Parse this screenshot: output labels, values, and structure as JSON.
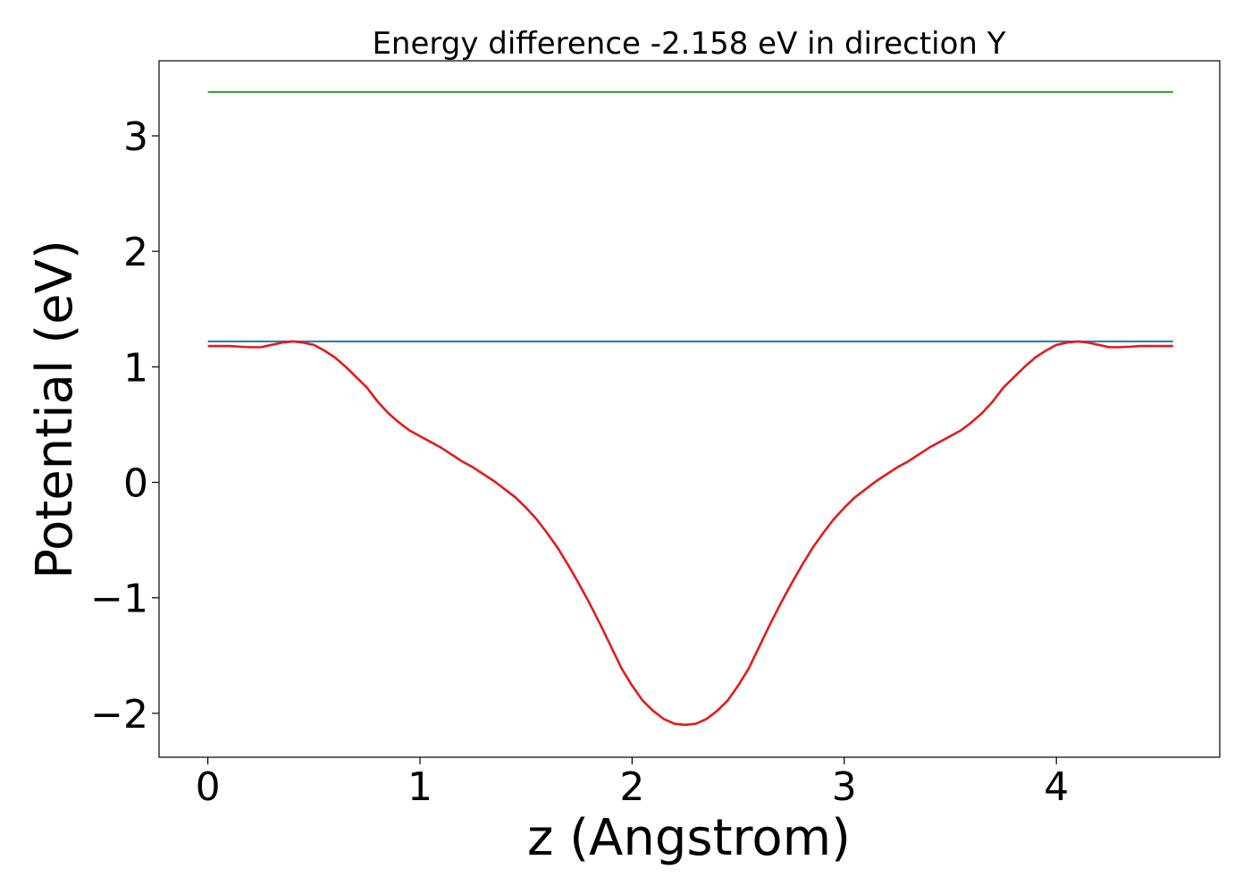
{
  "chart_data": {
    "type": "line",
    "title": "Energy difference -2.158 eV in direction Y",
    "xlabel": "z (Angstrom)",
    "ylabel": "Potential (eV)",
    "xlim": [
      -0.23,
      4.77
    ],
    "ylim": [
      -2.38,
      3.65
    ],
    "xticks": [
      0,
      1,
      2,
      3,
      4
    ],
    "xtick_labels": [
      "0",
      "1",
      "2",
      "3",
      "4"
    ],
    "yticks": [
      -2,
      -1,
      0,
      1,
      2,
      3
    ],
    "ytick_labels": [
      "−2",
      "−1",
      "0",
      "1",
      "2",
      "3"
    ],
    "grid": false,
    "colors": {
      "potential": "#e41a1c",
      "blue_level": "#1f77b4",
      "green_level": "#2ca02c"
    },
    "series": [
      {
        "name": "potential",
        "x": [
          0.0,
          0.05,
          0.1,
          0.15,
          0.2,
          0.25,
          0.3,
          0.35,
          0.4,
          0.45,
          0.5,
          0.55,
          0.6,
          0.65,
          0.7,
          0.75,
          0.8,
          0.85,
          0.9,
          0.95,
          1.0,
          1.05,
          1.1,
          1.15,
          1.2,
          1.25,
          1.3,
          1.35,
          1.4,
          1.45,
          1.5,
          1.55,
          1.6,
          1.65,
          1.7,
          1.75,
          1.8,
          1.85,
          1.9,
          1.95,
          2.0,
          2.05,
          2.1,
          2.15,
          2.2,
          2.25,
          2.3,
          2.35,
          2.4,
          2.45,
          2.5,
          2.55,
          2.6,
          2.65,
          2.7,
          2.75,
          2.8,
          2.85,
          2.9,
          2.95,
          3.0,
          3.05,
          3.1,
          3.15,
          3.2,
          3.25,
          3.3,
          3.35,
          3.4,
          3.45,
          3.5,
          3.55,
          3.6,
          3.65,
          3.7,
          3.75,
          3.8,
          3.85,
          3.9,
          3.95,
          4.0,
          4.05,
          4.1,
          4.15,
          4.2,
          4.25,
          4.3,
          4.35,
          4.4,
          4.45,
          4.5,
          4.55
        ],
        "y": [
          1.18,
          1.18,
          1.18,
          1.175,
          1.17,
          1.17,
          1.19,
          1.21,
          1.22,
          1.21,
          1.19,
          1.14,
          1.08,
          1.0,
          0.91,
          0.82,
          0.7,
          0.6,
          0.52,
          0.45,
          0.4,
          0.35,
          0.3,
          0.24,
          0.18,
          0.13,
          0.07,
          0.01,
          -0.06,
          -0.13,
          -0.22,
          -0.32,
          -0.44,
          -0.57,
          -0.72,
          -0.88,
          -1.05,
          -1.23,
          -1.42,
          -1.61,
          -1.76,
          -1.89,
          -1.98,
          -2.05,
          -2.09,
          -2.1,
          -2.09,
          -2.05,
          -1.98,
          -1.89,
          -1.76,
          -1.61,
          -1.42,
          -1.23,
          -1.05,
          -0.88,
          -0.72,
          -0.57,
          -0.44,
          -0.32,
          -0.22,
          -0.13,
          -0.06,
          0.01,
          0.07,
          0.13,
          0.18,
          0.24,
          0.3,
          0.35,
          0.4,
          0.45,
          0.52,
          0.6,
          0.7,
          0.82,
          0.91,
          1.0,
          1.08,
          1.14,
          1.19,
          1.21,
          1.22,
          1.21,
          1.19,
          1.17,
          1.17,
          1.175,
          1.18,
          1.18,
          1.18,
          1.18
        ]
      },
      {
        "name": "blue_level",
        "x": [
          0.0,
          4.55
        ],
        "y": [
          1.22,
          1.22
        ]
      },
      {
        "name": "green_level",
        "x": [
          0.0,
          4.55
        ],
        "y": [
          3.38,
          3.38
        ]
      }
    ]
  }
}
